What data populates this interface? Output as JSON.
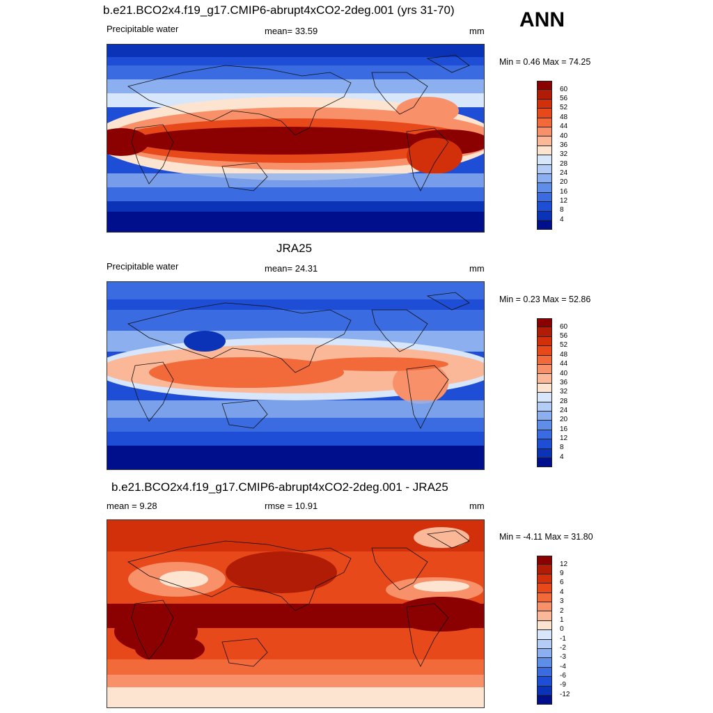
{
  "season": "ANN",
  "panels": [
    {
      "title": "b.e21.BCO2x4.f19_g17.CMIP6-abrupt4xCO2-2deg.001 (yrs 31-70)",
      "left_label": "Precipitable water",
      "center_label": "mean=  33.59",
      "units": "mm",
      "minmax": "Min =   0.46 Max =  74.25",
      "levels": [
        "60",
        "56",
        "52",
        "48",
        "44",
        "40",
        "36",
        "32",
        "28",
        "24",
        "20",
        "16",
        "12",
        "8",
        "4"
      ]
    },
    {
      "title": "JRA25",
      "left_label": "Precipitable water",
      "center_label": "mean=  24.31",
      "units": "mm",
      "minmax": "Min =   0.23 Max =  52.86",
      "levels": [
        "60",
        "56",
        "52",
        "48",
        "44",
        "40",
        "36",
        "32",
        "28",
        "24",
        "20",
        "16",
        "12",
        "8",
        "4"
      ]
    },
    {
      "title": "b.e21.BCO2x4.f19_g17.CMIP6-abrupt4xCO2-2deg.001 - JRA25",
      "left_label": "mean =   9.28",
      "center_label": "rmse =  10.91",
      "units": "mm",
      "minmax": "Min =  -4.11 Max =  31.80",
      "levels": [
        "12",
        "9",
        "6",
        "4",
        "3",
        "2",
        "1",
        "0",
        "-1",
        "-2",
        "-3",
        "-4",
        "-6",
        "-9",
        "-12"
      ]
    }
  ],
  "palette": [
    "#8b0000",
    "#b01c05",
    "#d2300a",
    "#e8491a",
    "#f2693a",
    "#f8906a",
    "#fbb898",
    "#fde4d0",
    "#d8e6fb",
    "#b4cdf6",
    "#8cb0ef",
    "#5f8ee8",
    "#3a6be0",
    "#1f4ed6",
    "#0b33b8",
    "#000f8c"
  ]
}
